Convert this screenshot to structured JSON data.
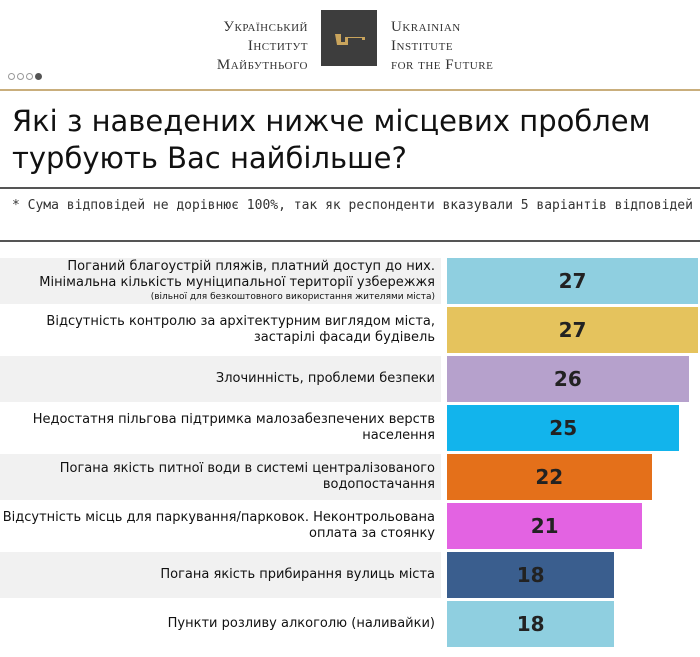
{
  "header": {
    "logo_ua": [
      "Український",
      "Інститут",
      "Майбутнього"
    ],
    "logo_en": [
      "Ukrainian",
      "Institute",
      "for the Future"
    ],
    "pager_total": 4,
    "pager_active": 4
  },
  "title": "Які з наведених нижче місцевих проблем турбують Вас найбільше?",
  "note": "* Сума відповідей не дорівнює 100%, так як респонденти вказували 5 варіантів відповідей",
  "chart_data": {
    "type": "bar",
    "orientation": "horizontal",
    "xlim": [
      0,
      27
    ],
    "categories": [
      "Поганий благоустрій пляжів, платний доступ до них. Мінімальна кількість муніципальної території узбережжя",
      "Відсутність контролю за архітектурним виглядом міста, застарілі фасади будівель",
      "Злочинність, проблеми безпеки",
      "Недостатня пільгова підтримка малозабезпечених верств населення",
      "Погана якість питної води в системі централізованого водопостачання",
      "Відсутність місць для паркування/парковок. Неконтрольована оплата за стоянку",
      "Погана якість прибирання вулиць міста",
      "Пункти розливу алкоголю (наливайки)"
    ],
    "subnotes": [
      "(вільної для безкоштовного використання жителями міста)",
      "",
      "",
      "",
      "",
      "",
      "",
      ""
    ],
    "values": [
      27,
      27,
      26,
      25,
      22,
      21,
      18,
      18
    ],
    "colors": [
      "#8fcfe0",
      "#e5c35d",
      "#b6a1cc",
      "#12b4ec",
      "#e4701a",
      "#e363e2",
      "#3a5e8e",
      "#8fcfe0"
    ]
  }
}
